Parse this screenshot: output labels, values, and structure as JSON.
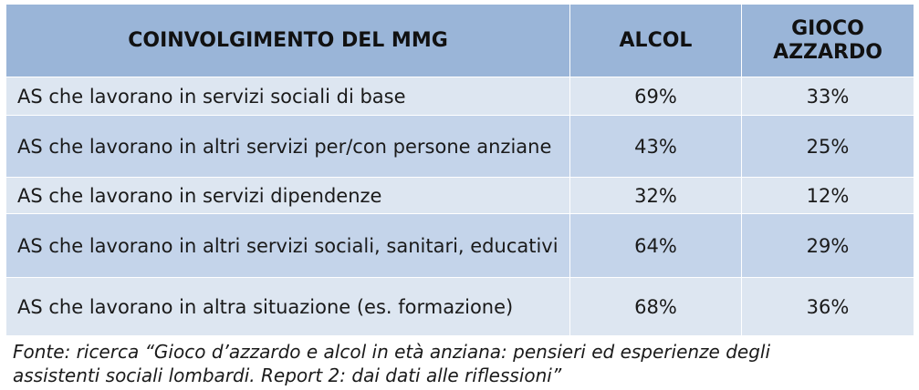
{
  "table": {
    "headers": [
      "COINVOLGIMENTO DEL MMG",
      "ALCOL",
      "GIOCO\nAZZARDO"
    ],
    "rows": [
      {
        "label": "AS che lavorano in servizi sociali di base",
        "alcol": "69%",
        "gioco": "33%"
      },
      {
        "label": "AS che lavorano in altri servizi per/con persone anziane",
        "alcol": "43%",
        "gioco": "25%"
      },
      {
        "label": "AS che lavorano in servizi dipendenze",
        "alcol": "32%",
        "gioco": "12%"
      },
      {
        "label": "AS che lavorano in altri servizi sociali, sanitari, educativi",
        "alcol": "64%",
        "gioco": "29%"
      },
      {
        "label": "AS che lavorano in altra situazione (es. formazione)",
        "alcol": "68%",
        "gioco": "36%"
      }
    ]
  },
  "source": "Fonte: ricerca “Gioco d’azzardo e alcol in età anziana: pensieri ed esperienze degli\nassistenti sociali lombardi. Report 2: dai dati alle riflessioni”",
  "colors": {
    "header": "#9ab5d8",
    "row_light": "#dde6f1",
    "row_dark": "#c4d4ea"
  }
}
